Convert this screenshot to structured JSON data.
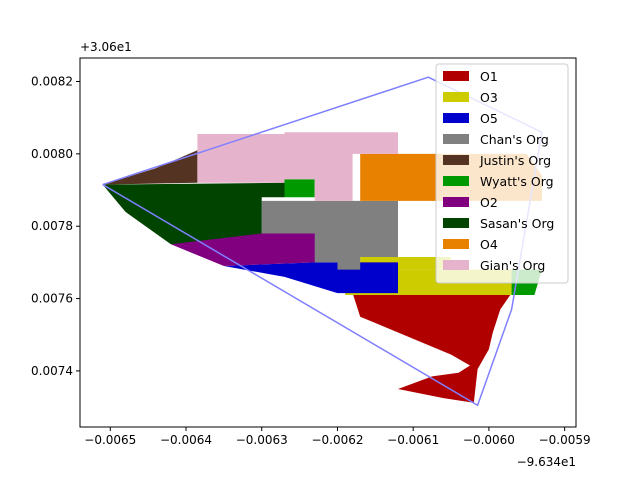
{
  "chart_data": {
    "type": "area",
    "title": "",
    "xlabel": "",
    "ylabel": "",
    "x_offset_label": "−9.634e1",
    "y_offset_label": "+3.06e1",
    "xlim": [
      -0.00654,
      -0.005885
    ],
    "ylim": [
      0.007245,
      0.008265
    ],
    "x_ticks": [
      -0.0065,
      -0.0064,
      -0.0063,
      -0.0062,
      -0.0061,
      -0.006,
      -0.0059
    ],
    "x_tick_labels": [
      "−0.0065",
      "−0.0064",
      "−0.0063",
      "−0.0062",
      "−0.0061",
      "−0.0060",
      "−0.0059"
    ],
    "y_ticks": [
      0.0074,
      0.0076,
      0.0078,
      0.008,
      0.0082
    ],
    "y_tick_labels": [
      "0.0074",
      "0.0076",
      "0.0078",
      "0.0080",
      "0.0082"
    ],
    "legend_position": "upper-right",
    "boundary": {
      "color": "#8080ff",
      "points": [
        [
          -0.00651,
          0.007915
        ],
        [
          -0.00608,
          0.008212
        ],
        [
          -0.00593,
          0.00806
        ],
        [
          -0.00597,
          0.00757
        ],
        [
          -0.006015,
          0.007305
        ],
        [
          -0.00651,
          0.007915
        ]
      ]
    },
    "series": [
      {
        "name": "O1",
        "color": "#b00000",
        "regions": [
          [
            [
              -0.00618,
              0.007615
            ],
            [
              -0.00597,
              0.007615
            ],
            [
              -0.005985,
              0.00757
            ],
            [
              -0.005995,
              0.007505
            ],
            [
              -0.006,
              0.00746
            ],
            [
              -0.006015,
              0.007405
            ],
            [
              -0.00602,
              0.007312
            ],
            [
              -0.00606,
              0.007325
            ],
            [
              -0.00612,
              0.00735
            ],
            [
              -0.006075,
              0.007385
            ],
            [
              -0.00604,
              0.007395
            ],
            [
              -0.006025,
              0.007415
            ],
            [
              -0.00605,
              0.007445
            ],
            [
              -0.00617,
              0.00755
            ]
          ]
        ]
      },
      {
        "name": "O3",
        "color": "#cccc00",
        "regions": [
          [
            [
              -0.00619,
              0.00768
            ],
            [
              -0.00597,
              0.00768
            ],
            [
              -0.00597,
              0.00761
            ],
            [
              -0.00619,
              0.00761
            ]
          ],
          [
            [
              -0.00617,
              0.007715
            ],
            [
              -0.00605,
              0.007715
            ],
            [
              -0.00605,
              0.00768
            ],
            [
              -0.00617,
              0.00768
            ]
          ]
        ]
      },
      {
        "name": "O5",
        "color": "#0000cc",
        "regions": [
          [
            [
              -0.00623,
              0.0077
            ],
            [
              -0.00612,
              0.0077
            ],
            [
              -0.00612,
              0.007615
            ],
            [
              -0.0062,
              0.007615
            ],
            [
              -0.00627,
              0.00766
            ],
            [
              -0.00635,
              0.00769
            ]
          ]
        ]
      },
      {
        "name": "Chan's Org",
        "color": "#808080",
        "regions": [
          [
            [
              -0.0063,
              0.00787
            ],
            [
              -0.00612,
              0.00787
            ],
            [
              -0.00612,
              0.007715
            ],
            [
              -0.00617,
              0.007715
            ],
            [
              -0.00617,
              0.00768
            ],
            [
              -0.0062,
              0.00768
            ],
            [
              -0.0062,
              0.0077
            ],
            [
              -0.0063,
              0.0077
            ]
          ]
        ]
      },
      {
        "name": "Justin's Org",
        "color": "#553322",
        "regions": [
          [
            [
              -0.006385,
              0.00801
            ],
            [
              -0.006385,
              0.00792
            ],
            [
              -0.00651,
              0.007915
            ],
            [
              -0.00644,
              0.00796
            ]
          ]
        ]
      },
      {
        "name": "Wyatt's Org",
        "color": "#009900",
        "regions": [
          [
            [
              -0.00597,
              0.00768
            ],
            [
              -0.00593,
              0.00768
            ],
            [
              -0.00594,
              0.00761
            ],
            [
              -0.00597,
              0.00761
            ]
          ],
          [
            [
              -0.00627,
              0.00793
            ],
            [
              -0.00623,
              0.00793
            ],
            [
              -0.00623,
              0.00788
            ],
            [
              -0.00627,
              0.00788
            ]
          ]
        ]
      },
      {
        "name": "O2",
        "color": "#800080",
        "regions": [
          [
            [
              -0.00638,
              0.00778
            ],
            [
              -0.00623,
              0.00778
            ],
            [
              -0.00623,
              0.0077
            ],
            [
              -0.00635,
              0.00769
            ],
            [
              -0.00642,
              0.00775
            ]
          ]
        ]
      },
      {
        "name": "Sasan's Org",
        "color": "#004400",
        "regions": [
          [
            [
              -0.00651,
              0.007915
            ],
            [
              -0.00627,
              0.00792
            ],
            [
              -0.00627,
              0.00788
            ],
            [
              -0.0063,
              0.00788
            ],
            [
              -0.0063,
              0.00778
            ],
            [
              -0.00642,
              0.00775
            ],
            [
              -0.00648,
              0.00784
            ]
          ]
        ]
      },
      {
        "name": "O4",
        "color": "#e88000",
        "regions": [
          [
            [
              -0.00617,
              0.008
            ],
            [
              -0.00595,
              0.008
            ],
            [
              -0.00593,
              0.00794
            ],
            [
              -0.00593,
              0.00787
            ],
            [
              -0.00617,
              0.00787
            ]
          ]
        ]
      },
      {
        "name": "Gian's Org",
        "color": "#e6b3cc",
        "regions": [
          [
            [
              -0.006385,
              0.008055
            ],
            [
              -0.00627,
              0.008055
            ],
            [
              -0.00627,
              0.00806
            ],
            [
              -0.00612,
              0.00806
            ],
            [
              -0.00612,
              0.008
            ],
            [
              -0.00618,
              0.008
            ],
            [
              -0.00618,
              0.00787
            ],
            [
              -0.00623,
              0.00787
            ],
            [
              -0.00623,
              0.00793
            ],
            [
              -0.00627,
              0.00793
            ],
            [
              -0.00627,
              0.00792
            ],
            [
              -0.006385,
              0.00792
            ]
          ]
        ]
      }
    ]
  }
}
